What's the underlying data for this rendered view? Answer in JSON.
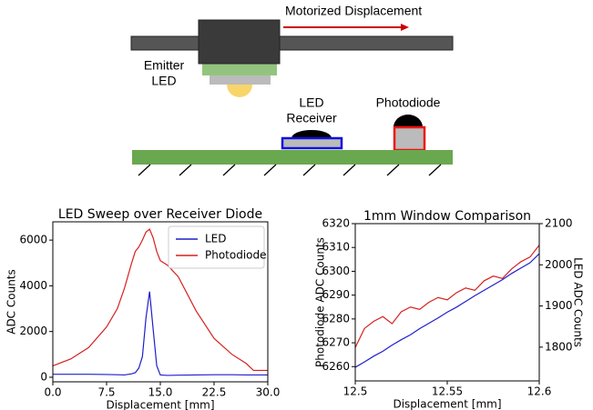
{
  "diagram": {
    "arrow_label": "Motorized Displacement",
    "emitter_label": [
      "Emitter",
      "LED"
    ],
    "receiver_label": [
      "LED",
      "Receiver"
    ],
    "photodiode_label": "Photodiode"
  },
  "chart_data": [
    {
      "type": "line",
      "title": "LED Sweep over Receiver Diode",
      "x_label": "Displacement [mm]",
      "y_label": "ADC Counts",
      "x": [
        0,
        2.5,
        5,
        7.5,
        9,
        10,
        11,
        11.5,
        12,
        12.5,
        13,
        13.5,
        14,
        14.5,
        15,
        16,
        17.5,
        20,
        22.5,
        25,
        27,
        28,
        30
      ],
      "series": [
        {
          "name": "LED",
          "color": "#1f1fcc",
          "values": [
            130,
            130,
            130,
            120,
            110,
            100,
            150,
            200,
            400,
            900,
            2600,
            3750,
            2100,
            500,
            100,
            80,
            90,
            100,
            110,
            110,
            100,
            100,
            100
          ]
        },
        {
          "name": "Photodiode",
          "color": "#d62020",
          "values": [
            500,
            800,
            1300,
            2200,
            3000,
            3900,
            5000,
            5500,
            5700,
            6000,
            6350,
            6480,
            6100,
            5500,
            5100,
            4900,
            4400,
            2900,
            1700,
            1000,
            600,
            300,
            300
          ]
        }
      ],
      "xlim": [
        0,
        30
      ],
      "ylim": [
        -200,
        6800
      ],
      "xticks": [
        {
          "value": 0,
          "label": "0.0"
        },
        {
          "value": 7.5,
          "label": "7.5"
        },
        {
          "value": 15,
          "label": "15.0"
        },
        {
          "value": 22.5,
          "label": "22.5"
        },
        {
          "value": 30,
          "label": "30.0"
        }
      ],
      "yticks": [
        0,
        2000,
        4000,
        6000
      ],
      "legend": "upper right"
    },
    {
      "type": "line",
      "title": "1mm Window Comparison",
      "x_label": "Displacement [mm]",
      "y_label": "Photodiode ADC Counts",
      "y2_label": "LED ADC Counts",
      "x": [
        12.5,
        12.505,
        12.51,
        12.515,
        12.52,
        12.525,
        12.53,
        12.535,
        12.54,
        12.545,
        12.55,
        12.555,
        12.56,
        12.565,
        12.57,
        12.575,
        12.58,
        12.585,
        12.59,
        12.595,
        12.6
      ],
      "series": [
        {
          "color": "#d62020",
          "values": [
            6268,
            6276,
            6279,
            6281,
            6278,
            6283,
            6285,
            6284,
            6287,
            6289,
            6288,
            6291,
            6293,
            6292,
            6296,
            6298,
            6297,
            6301,
            6304,
            6306,
            6311
          ]
        },
        {
          "color": "#1f1fcc",
          "axis": "y2",
          "values": [
            1751,
            1764,
            1778,
            1790,
            1805,
            1818,
            1830,
            1845,
            1858,
            1871,
            1885,
            1897,
            1911,
            1925,
            1938,
            1951,
            1964,
            1979,
            1992,
            2005,
            2027
          ]
        }
      ],
      "xlim": [
        12.5,
        12.6
      ],
      "ylim": [
        6254,
        6320
      ],
      "y2lim": [
        1718,
        2100
      ],
      "xticks": [
        12.5,
        12.55,
        12.6
      ],
      "yticks": [
        6260,
        6270,
        6280,
        6290,
        6300,
        6310,
        6320
      ],
      "y2ticks": [
        1800,
        1900,
        2000,
        2100
      ]
    }
  ]
}
